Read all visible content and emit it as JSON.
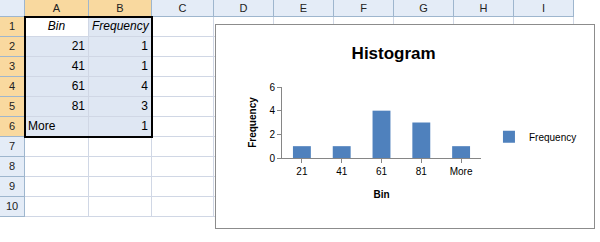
{
  "chart_data": {
    "type": "bar",
    "title": "Histogram",
    "x_label": "Bin",
    "y_label": "Frequency",
    "categories": [
      "21",
      "41",
      "61",
      "81",
      "More"
    ],
    "series": [
      {
        "name": "Frequency",
        "color": "#4f81bd",
        "values": [
          1,
          1,
          4,
          3,
          1
        ]
      }
    ],
    "ylim": [
      0,
      6
    ],
    "yticks": [
      0,
      2,
      4,
      6
    ],
    "grid": false,
    "legend": "right"
  },
  "sheet": {
    "columns": [
      "A",
      "B",
      "C",
      "D",
      "E",
      "F",
      "G",
      "H",
      "I"
    ],
    "rows": [
      1,
      2,
      3,
      4,
      5,
      6,
      7,
      8,
      9,
      10
    ],
    "cells": [
      [
        "Bin",
        "Frequency"
      ],
      [
        21,
        1
      ],
      [
        41,
        1
      ],
      [
        61,
        4
      ],
      [
        81,
        3
      ],
      [
        "More",
        1
      ]
    ]
  }
}
